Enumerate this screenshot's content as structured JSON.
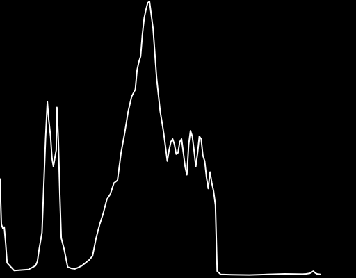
{
  "colors": {
    "background": "#000000",
    "line": "#ffffff"
  },
  "chart_data": {
    "type": "line",
    "title": "",
    "xlabel": "",
    "ylabel": "",
    "grid": false,
    "legend": "none",
    "xlim": [
      0,
      1
    ],
    "ylim": [
      0,
      1
    ],
    "series": [
      {
        "x": [
          0.0,
          0.004,
          0.008,
          0.012,
          0.016,
          0.02,
          0.04,
          0.06,
          0.08,
          0.1,
          0.105,
          0.11,
          0.118,
          0.122,
          0.128,
          0.133,
          0.137,
          0.142,
          0.146,
          0.15,
          0.154,
          0.158,
          0.16,
          0.164,
          0.168,
          0.172,
          0.18,
          0.19,
          0.2,
          0.21,
          0.22,
          0.23,
          0.24,
          0.25,
          0.26,
          0.27,
          0.28,
          0.29,
          0.3,
          0.31,
          0.32,
          0.33,
          0.34,
          0.35,
          0.355,
          0.36,
          0.37,
          0.38,
          0.385,
          0.39,
          0.395,
          0.4,
          0.405,
          0.41,
          0.415,
          0.42,
          0.43,
          0.44,
          0.45,
          0.455,
          0.46,
          0.465,
          0.47,
          0.475,
          0.48,
          0.485,
          0.49,
          0.495,
          0.5,
          0.505,
          0.51,
          0.515,
          0.52,
          0.525,
          0.53,
          0.535,
          0.54,
          0.545,
          0.55,
          0.555,
          0.56,
          0.565,
          0.57,
          0.575,
          0.58,
          0.585,
          0.59,
          0.595,
          0.6,
          0.605,
          0.61,
          0.62,
          0.65,
          0.7,
          0.75,
          0.8,
          0.85,
          0.86,
          0.87,
          0.875,
          0.88,
          0.885,
          0.89,
          0.9
        ],
        "values": [
          0.355,
          0.19,
          0.175,
          0.18,
          0.12,
          0.05,
          0.022,
          0.024,
          0.026,
          0.04,
          0.055,
          0.1,
          0.16,
          0.3,
          0.5,
          0.635,
          0.57,
          0.51,
          0.43,
          0.4,
          0.43,
          0.46,
          0.615,
          0.49,
          0.3,
          0.14,
          0.1,
          0.035,
          0.03,
          0.028,
          0.033,
          0.04,
          0.05,
          0.06,
          0.075,
          0.14,
          0.19,
          0.23,
          0.28,
          0.3,
          0.34,
          0.35,
          0.45,
          0.52,
          0.56,
          0.6,
          0.655,
          0.68,
          0.75,
          0.78,
          0.8,
          0.88,
          0.94,
          0.97,
          0.995,
          1.0,
          0.9,
          0.72,
          0.6,
          0.56,
          0.52,
          0.47,
          0.42,
          0.46,
          0.49,
          0.5,
          0.48,
          0.445,
          0.45,
          0.49,
          0.5,
          0.45,
          0.4,
          0.37,
          0.48,
          0.53,
          0.51,
          0.46,
          0.4,
          0.45,
          0.51,
          0.5,
          0.44,
          0.42,
          0.36,
          0.32,
          0.38,
          0.34,
          0.31,
          0.26,
          0.02,
          0.008,
          0.007,
          0.006,
          0.008,
          0.01,
          0.009,
          0.01,
          0.012,
          0.016,
          0.02,
          0.014,
          0.01,
          0.008
        ]
      }
    ]
  }
}
